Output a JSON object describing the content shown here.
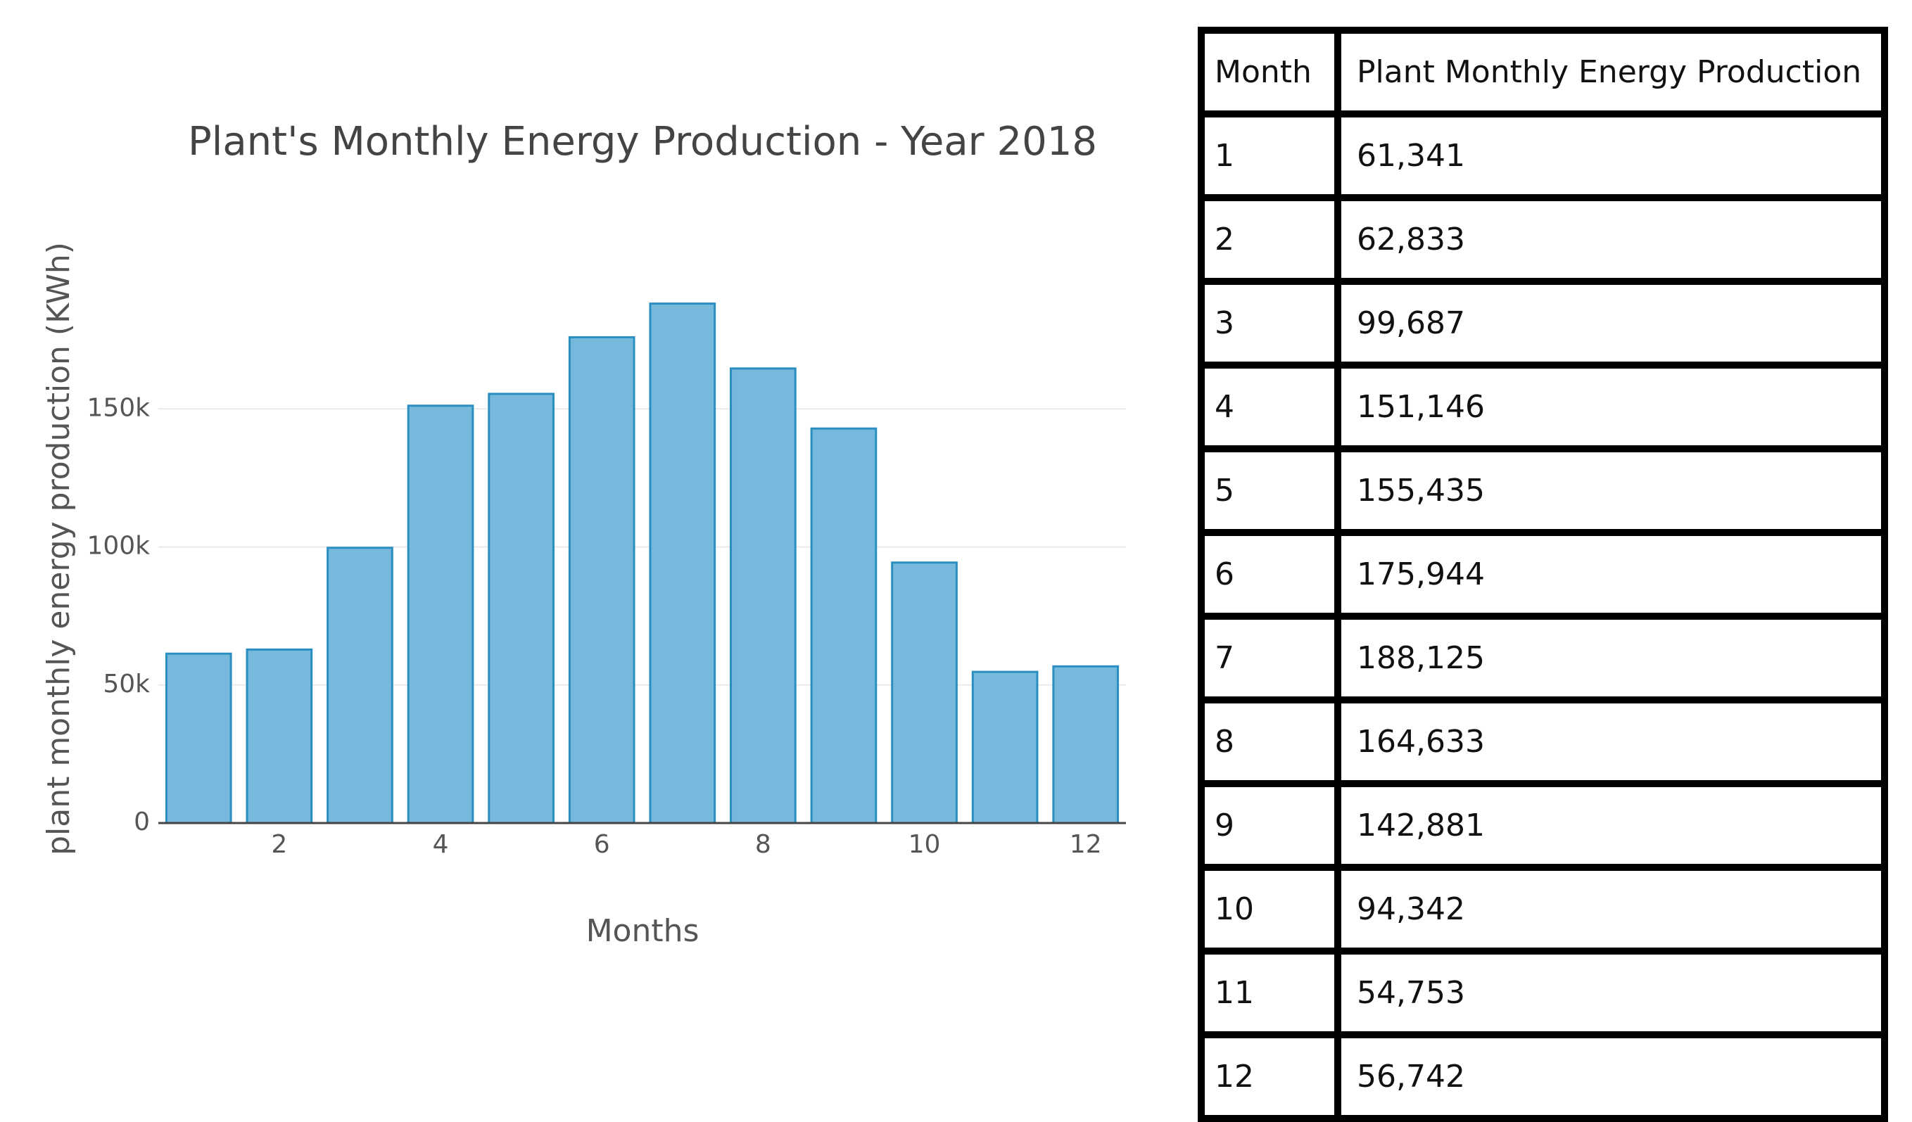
{
  "chart_data": {
    "type": "bar",
    "title": "Plant's Monthly Energy Production - Year 2018",
    "x_label": "Months",
    "y_label": "plant monthly energy production (KWh)",
    "x": [
      1,
      2,
      3,
      4,
      5,
      6,
      7,
      8,
      9,
      10,
      11,
      12
    ],
    "values": [
      61341,
      62833,
      99687,
      151146,
      155435,
      175944,
      188125,
      164633,
      142881,
      94342,
      54753,
      56742
    ],
    "color": "#76b9dc",
    "xlim": [
      0.5,
      12.5
    ],
    "xticks": [
      2,
      4,
      6,
      8,
      10,
      12
    ],
    "ylim": [
      0,
      200000
    ],
    "yticks": [
      0,
      {
        "value": 50000,
        "label": "50k"
      },
      {
        "value": 100000,
        "label": "100k"
      },
      {
        "value": 150000,
        "label": "150k"
      }
    ],
    "grid": true
  },
  "table": {
    "header": [
      "Month",
      "Plant Monthly Energy Production"
    ],
    "rows": [
      [
        "1",
        "61,341"
      ],
      [
        "2",
        "62,833"
      ],
      [
        "3",
        "99,687"
      ],
      [
        "4",
        "151,146"
      ],
      [
        "5",
        "155,435"
      ],
      [
        "6",
        "175,944"
      ],
      [
        "7",
        "188,125"
      ],
      [
        "8",
        "164,633"
      ],
      [
        "9",
        "142,881"
      ],
      [
        "10",
        "94,342"
      ],
      [
        "11",
        "54,753"
      ],
      [
        "12",
        "56,742"
      ]
    ]
  }
}
